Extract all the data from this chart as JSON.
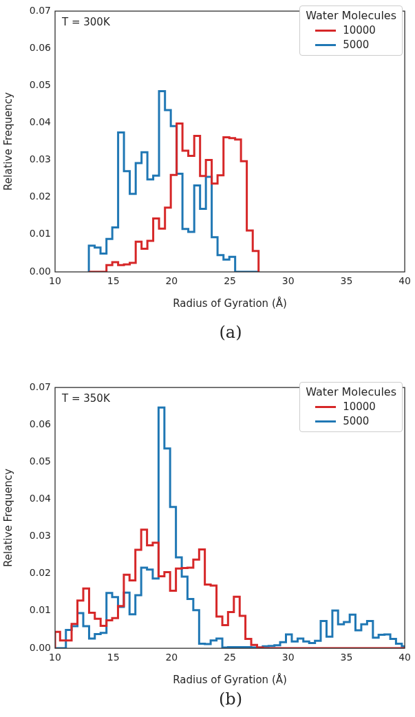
{
  "chart_data": [
    {
      "type": "histogram",
      "xlabel": "Radius of Gyration (Å)",
      "ylabel": "Relative Frequency",
      "legend_title": "Water Molecules",
      "legend": "top right",
      "annotations": [
        "T = 300K",
        "(a)"
      ],
      "xlim": [
        10,
        40
      ],
      "xticks": [
        10,
        15,
        20,
        25,
        30,
        35,
        40
      ],
      "ylim": [
        0,
        0.07
      ],
      "yticks": [
        {
          "value": 0,
          "label": "0.00"
        },
        {
          "value": 0.01,
          "label": "0.01"
        },
        {
          "value": 0.02,
          "label": "0.02"
        },
        {
          "value": 0.03,
          "label": "0.03"
        },
        {
          "value": 0.04,
          "label": "0.04"
        },
        {
          "value": 0.05,
          "label": "0.05"
        },
        {
          "value": 0.06,
          "label": "0.06"
        },
        {
          "value": 0.07,
          "label": "0.07"
        }
      ],
      "bins": [
        12.9,
        13.4,
        13.9,
        14.41,
        14.91,
        15.41,
        15.91,
        16.41,
        16.92,
        17.42,
        17.92,
        18.42,
        18.92,
        19.43,
        19.93,
        20.43,
        20.93,
        21.43,
        21.94,
        22.44,
        22.94,
        23.44,
        23.94,
        24.45,
        24.95,
        25.45,
        25.95,
        26.45,
        26.96,
        27.46
      ],
      "series": [
        {
          "name": "10000",
          "color": "#d62728",
          "values": [
            0,
            0,
            0,
            0.0018,
            0.0026,
            0.0018,
            0.002,
            0.0024,
            0.0081,
            0.0062,
            0.0083,
            0.0143,
            0.0116,
            0.0172,
            0.026,
            0.0398,
            0.0325,
            0.0311,
            0.0365,
            0.0257,
            0.03,
            0.0237,
            0.0259,
            0.0361,
            0.0359,
            0.0355,
            0.0297,
            0.0111,
            0.0056
          ]
        },
        {
          "name": "5000",
          "color": "#1f77b4",
          "values": [
            0.007,
            0.0065,
            0.0049,
            0.0088,
            0.0119,
            0.0374,
            0.027,
            0.0209,
            0.0292,
            0.0321,
            0.0248,
            0.0258,
            0.0485,
            0.0434,
            0.0391,
            0.0263,
            0.0115,
            0.0107,
            0.0232,
            0.0169,
            0.0255,
            0.0093,
            0.0045,
            0.0033,
            0.004,
            0,
            0,
            0,
            0
          ]
        }
      ]
    },
    {
      "type": "histogram",
      "xlabel": "Radius of Gyration (Å)",
      "ylabel": "Relative Frequency",
      "legend_title": "Water Molecules",
      "legend": "top right",
      "annotations": [
        "T = 350K",
        "(b)"
      ],
      "xlim": [
        10,
        40
      ],
      "xticks": [
        10,
        15,
        20,
        25,
        30,
        35,
        40
      ],
      "ylim": [
        0,
        0.07
      ],
      "yticks": [
        {
          "value": 0,
          "label": "0.00"
        },
        {
          "value": 0.01,
          "label": "0.01"
        },
        {
          "value": 0.02,
          "label": "0.02"
        },
        {
          "value": 0.03,
          "label": "0.03"
        },
        {
          "value": 0.04,
          "label": "0.04"
        },
        {
          "value": 0.05,
          "label": "0.05"
        },
        {
          "value": 0.06,
          "label": "0.06"
        },
        {
          "value": 0.07,
          "label": "0.07"
        }
      ],
      "bins": [
        10,
        10.43,
        10.93,
        11.42,
        11.92,
        12.42,
        12.92,
        13.41,
        13.91,
        14.41,
        14.9,
        15.4,
        15.9,
        16.39,
        16.89,
        17.39,
        17.89,
        18.38,
        18.88,
        19.38,
        19.87,
        20.37,
        20.87,
        21.36,
        21.86,
        22.36,
        22.85,
        23.35,
        23.85,
        24.35,
        24.84,
        25.34,
        25.84,
        26.33,
        26.83,
        27.33,
        27.82,
        28.32,
        28.82,
        29.31,
        29.81,
        30.31,
        30.81,
        31.3,
        31.8,
        32.3,
        32.79,
        33.29,
        33.79,
        34.28,
        34.78,
        35.28,
        35.77,
        36.27,
        36.77,
        37.27,
        37.76,
        38.26,
        38.76,
        39.25,
        39.75,
        40
      ],
      "series": [
        {
          "name": "10000",
          "color": "#d62728",
          "values": [
            0.0044,
            0.0021,
            0.0021,
            0.0065,
            0.0128,
            0.016,
            0.0095,
            0.0079,
            0.006,
            0.0075,
            0.0081,
            0.0113,
            0.0197,
            0.0182,
            0.0264,
            0.0318,
            0.0276,
            0.0283,
            0.0193,
            0.0204,
            0.0154,
            0.0214,
            0.0215,
            0.0216,
            0.0238,
            0.0265,
            0.0171,
            0.0168,
            0.0085,
            0.0062,
            0.0097,
            0.0138,
            0.0087,
            0.0025,
            0.0009,
            0.0002,
            0,
            0,
            0,
            0,
            0,
            0,
            0,
            0,
            0,
            0,
            0,
            0,
            0,
            0,
            0,
            0,
            0,
            0,
            0,
            0,
            0,
            0,
            0,
            0,
            0
          ]
        },
        {
          "name": "5000",
          "color": "#1f77b4",
          "values": [
            0,
            0,
            0.0049,
            0.0059,
            0.0094,
            0.0059,
            0.0026,
            0.0038,
            0.0041,
            0.0148,
            0.0137,
            0.0111,
            0.0149,
            0.0091,
            0.0142,
            0.0216,
            0.0211,
            0.0187,
            0.0646,
            0.0536,
            0.0379,
            0.0244,
            0.0192,
            0.0132,
            0.0102,
            0.0012,
            0.0011,
            0.0021,
            0.0026,
            0.0002,
            0.0003,
            0.0003,
            0.0003,
            0.0003,
            0.0002,
            0.0002,
            0.0005,
            0.0006,
            0.0008,
            0.0016,
            0.0037,
            0.0018,
            0.0026,
            0.0018,
            0.0014,
            0.002,
            0.0073,
            0.0031,
            0.0101,
            0.0064,
            0.007,
            0.009,
            0.0048,
            0.0064,
            0.0073,
            0.0028,
            0.0036,
            0.0037,
            0.0025,
            0.0012,
            0.0005
          ]
        }
      ]
    }
  ]
}
